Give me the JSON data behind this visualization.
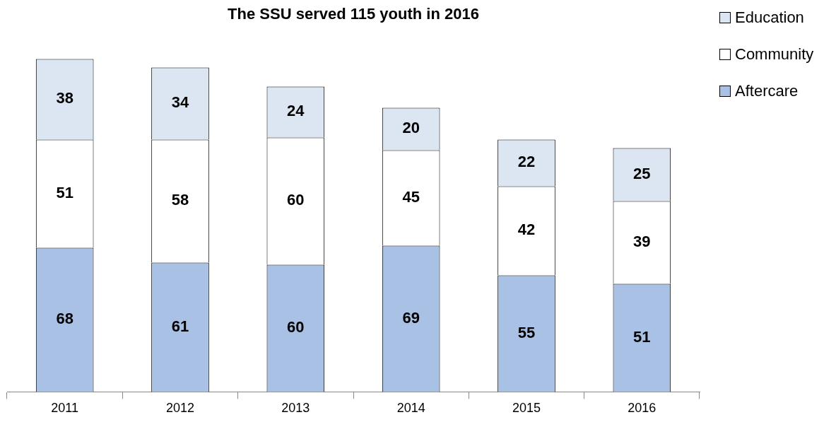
{
  "chart_data": {
    "type": "bar",
    "title": "The SSU served 115 youth in 2016",
    "categories": [
      "2011",
      "2012",
      "2013",
      "2014",
      "2015",
      "2016"
    ],
    "stacked": true,
    "data_labels": true,
    "legend": "top right",
    "grid": false,
    "tick_labels": "x",
    "series": [
      {
        "name": "Aftercare",
        "color": "#a9c1e4",
        "values": [
          68,
          61,
          60,
          69,
          55,
          51
        ]
      },
      {
        "name": "Community",
        "color": "#ffffff",
        "values": [
          51,
          58,
          60,
          45,
          42,
          39
        ]
      },
      {
        "name": "Education",
        "color": "#dce6f2",
        "values": [
          38,
          34,
          24,
          20,
          22,
          25
        ]
      }
    ]
  }
}
